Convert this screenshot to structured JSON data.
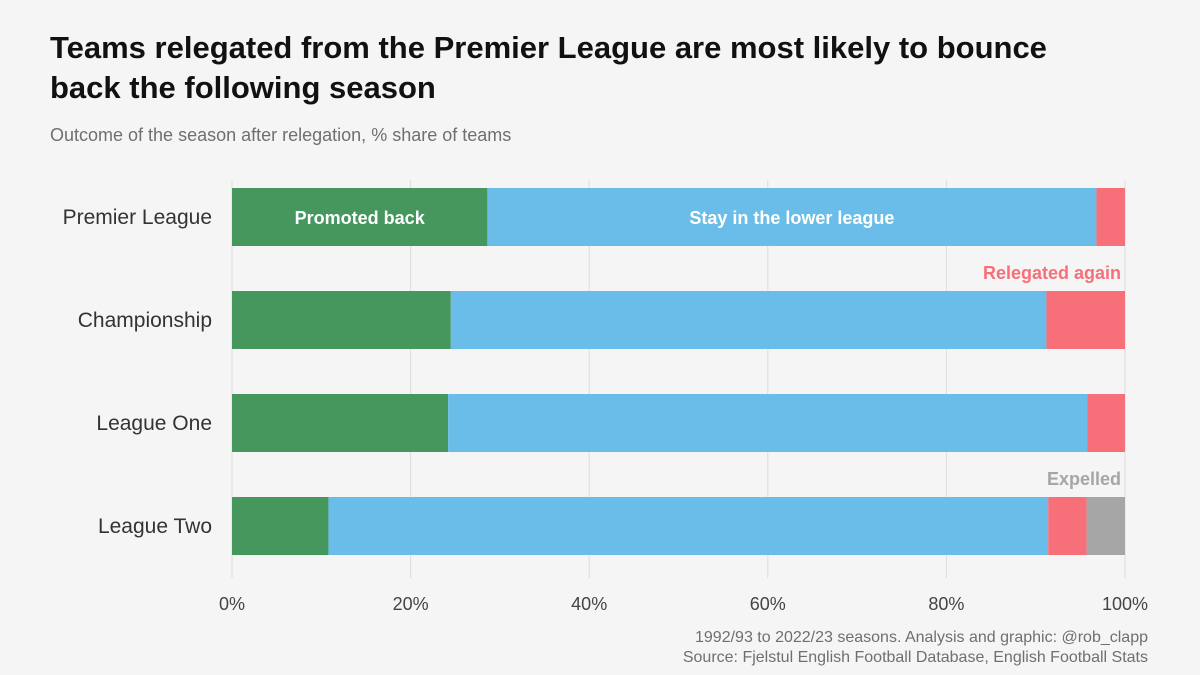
{
  "title": "Teams relegated from the Premier League are most likely to bounce back the following season",
  "subtitle": "Outcome of the season after relegation, % share of teams",
  "footer": {
    "line1": "1992/93 to 2022/23 seasons. Analysis and graphic: @rob_clapp",
    "line2": "Source: Fjelstul English Football Database, English Football Stats"
  },
  "chart_data": {
    "type": "bar",
    "orientation": "horizontal",
    "stacked": true,
    "categories": [
      "Premier League",
      "Championship",
      "League One",
      "League Two"
    ],
    "series": [
      {
        "name": "Promoted back",
        "color": "#46975e",
        "values": [
          28.6,
          24.5,
          24.2,
          10.8
        ]
      },
      {
        "name": "Stay in the lower league",
        "color": "#6bbde9",
        "values": [
          68.2,
          66.7,
          71.6,
          80.6
        ]
      },
      {
        "name": "Relegated again",
        "color": "#f76f78",
        "values": [
          3.2,
          8.8,
          4.2,
          4.3
        ]
      },
      {
        "name": "Expelled",
        "color": "#a6a6a6",
        "values": [
          0,
          0,
          0,
          4.3
        ]
      }
    ],
    "xlim": [
      0,
      100
    ],
    "x_ticks": [
      0,
      20,
      40,
      60,
      80,
      100
    ],
    "x_tick_labels": [
      "0%",
      "20%",
      "40%",
      "60%",
      "80%",
      "100%"
    ],
    "grid": true,
    "xlabel": "",
    "ylabel": ""
  }
}
